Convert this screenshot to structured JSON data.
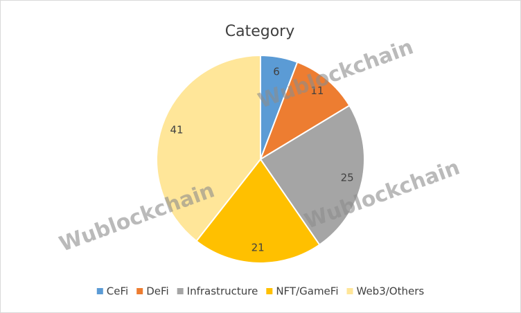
{
  "chart_data": {
    "type": "pie",
    "title": "Category",
    "categories": [
      "CeFi",
      "DeFi",
      "Infrastructure",
      "NFT/GameFi",
      "Web3/Others"
    ],
    "values": [
      6,
      11,
      25,
      21,
      41
    ],
    "colors": [
      "#5b9bd5",
      "#ed7d31",
      "#a5a5a5",
      "#ffc000",
      "#ffe699"
    ],
    "legend": "bottom",
    "watermarks": [
      "Wublockchain",
      "Wublockchain",
      "Wublockchain"
    ]
  }
}
